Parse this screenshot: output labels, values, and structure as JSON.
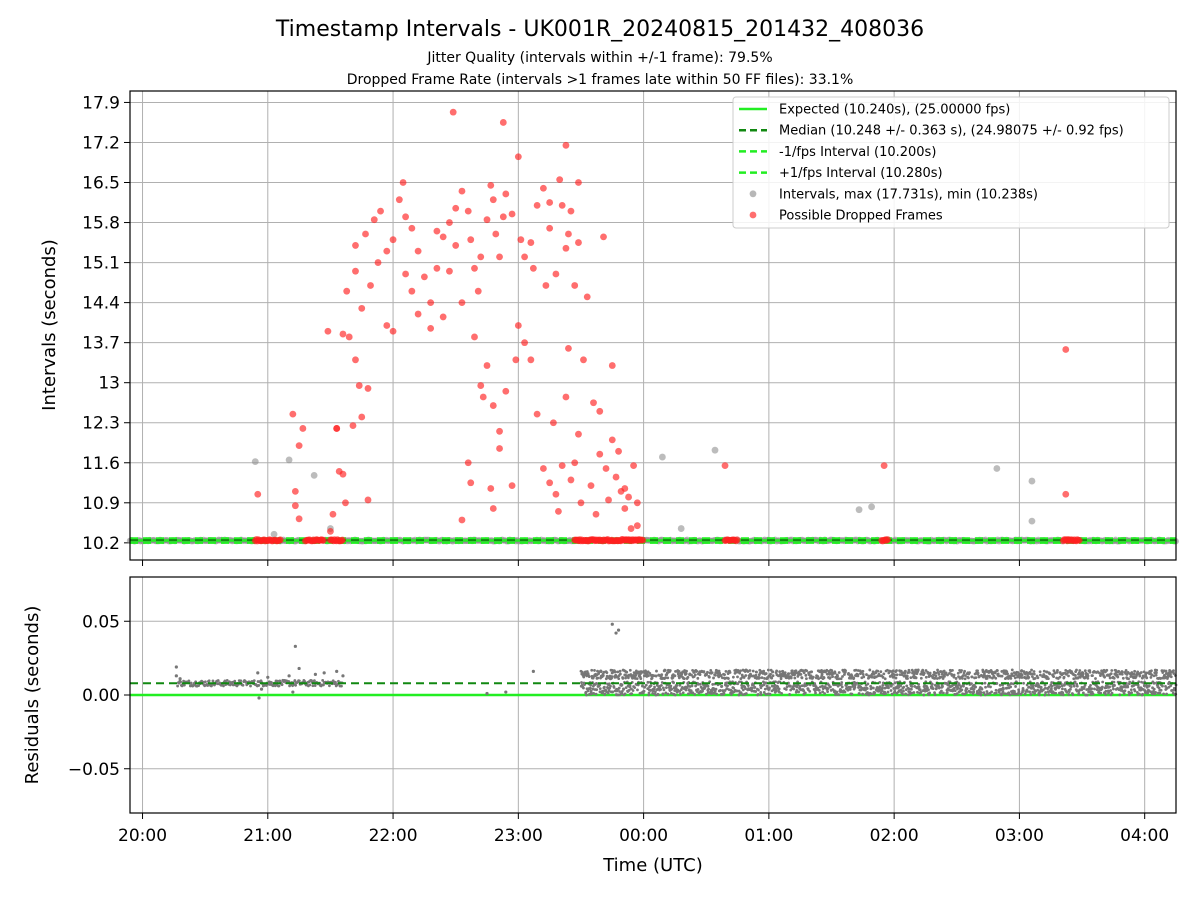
{
  "chart_data": {
    "type": "scatter",
    "title": "Timestamp Intervals - UK001R_20240815_201432_408036",
    "subtitle_lines": [
      "Jitter Quality (intervals within +/-1 frame): 79.5%",
      "Dropped Frame Rate (intervals >1 frames late within 50 FF files): 33.1%"
    ],
    "xlabel": "Time (UTC)",
    "x_ticks": [
      "20:00",
      "21:00",
      "22:00",
      "23:00",
      "00:00",
      "01:00",
      "02:00",
      "03:00",
      "04:00"
    ],
    "x_range_hours": [
      19.9,
      28.25
    ],
    "colors": {
      "expected": "#22ee22",
      "median": "#118811",
      "interval_bounds": "#22ee22",
      "intervals": "#909090",
      "dropped": "#ff2020",
      "residuals": "#777777"
    },
    "top_panel": {
      "ylabel": "Intervals (seconds)",
      "ylim": [
        9.9,
        18.1
      ],
      "y_ticks": [
        10.2,
        10.9,
        11.6,
        12.3,
        13.0,
        13.7,
        14.4,
        15.1,
        15.8,
        16.5,
        17.2,
        17.9
      ],
      "expected": 10.24,
      "median": 10.248,
      "minus_interval": 10.2,
      "plus_interval": 10.28,
      "legend": [
        {
          "key": "expected",
          "style": "solid",
          "label": "Expected (10.240s), (25.00000 fps)"
        },
        {
          "key": "median",
          "style": "dashed",
          "label": "Median (10.248 +/- 0.363 s), (24.98075 +/- 0.92 fps)"
        },
        {
          "key": "minus",
          "style": "dashed",
          "label": "-1/fps Interval (10.200s)"
        },
        {
          "key": "plus",
          "style": "dashed",
          "label": "+1/fps Interval (10.280s)"
        },
        {
          "key": "intervals",
          "style": "marker",
          "label": "Intervals, max (17.731s), min (10.238s)"
        },
        {
          "key": "dropped",
          "style": "marker",
          "label": "Possible Dropped Frames"
        }
      ],
      "gray_points": [
        [
          20.9,
          11.62
        ],
        [
          21.05,
          10.35
        ],
        [
          21.17,
          11.65
        ],
        [
          21.37,
          11.38
        ],
        [
          21.5,
          10.45
        ],
        [
          24.3,
          10.45
        ],
        [
          24.15,
          11.7
        ],
        [
          24.57,
          11.82
        ],
        [
          25.72,
          10.78
        ],
        [
          25.82,
          10.83
        ],
        [
          26.82,
          11.5
        ],
        [
          27.1,
          11.28
        ],
        [
          27.1,
          10.58
        ]
      ],
      "dropped_points": [
        [
          20.92,
          11.05
        ],
        [
          21.2,
          12.45
        ],
        [
          21.22,
          11.1
        ],
        [
          21.22,
          10.85
        ],
        [
          21.25,
          10.62
        ],
        [
          21.25,
          11.9
        ],
        [
          21.28,
          12.2
        ],
        [
          21.5,
          10.4
        ],
        [
          21.52,
          10.7
        ],
        [
          21.55,
          12.2
        ],
        [
          21.57,
          11.45
        ],
        [
          21.6,
          11.4
        ],
        [
          21.62,
          10.9
        ],
        [
          21.55,
          12.2
        ],
        [
          21.48,
          13.9
        ],
        [
          21.6,
          13.85
        ],
        [
          21.65,
          13.8
        ],
        [
          21.7,
          13.4
        ],
        [
          21.73,
          12.95
        ],
        [
          21.8,
          12.9
        ],
        [
          21.68,
          12.25
        ],
        [
          21.75,
          12.4
        ],
        [
          21.8,
          10.95
        ],
        [
          21.63,
          14.6
        ],
        [
          21.7,
          15.4
        ],
        [
          21.78,
          15.6
        ],
        [
          21.85,
          15.85
        ],
        [
          21.9,
          16.0
        ],
        [
          21.7,
          14.95
        ],
        [
          21.75,
          14.3
        ],
        [
          21.82,
          14.7
        ],
        [
          21.88,
          15.1
        ],
        [
          21.95,
          15.3
        ],
        [
          22.0,
          15.5
        ],
        [
          22.05,
          16.2
        ],
        [
          22.08,
          16.5
        ],
        [
          22.1,
          15.9
        ],
        [
          22.15,
          15.7
        ],
        [
          22.2,
          15.3
        ],
        [
          22.25,
          14.85
        ],
        [
          22.3,
          14.4
        ],
        [
          22.35,
          15.0
        ],
        [
          22.4,
          15.55
        ],
        [
          22.45,
          15.8
        ],
        [
          22.48,
          17.73
        ],
        [
          22.5,
          16.05
        ],
        [
          22.55,
          16.35
        ],
        [
          22.6,
          16.0
        ],
        [
          22.62,
          15.5
        ],
        [
          22.65,
          15.0
        ],
        [
          22.68,
          14.6
        ],
        [
          22.7,
          15.2
        ],
        [
          22.75,
          15.85
        ],
        [
          22.78,
          16.45
        ],
        [
          22.8,
          16.2
        ],
        [
          22.82,
          15.6
        ],
        [
          22.85,
          15.2
        ],
        [
          22.88,
          15.9
        ],
        [
          22.9,
          16.3
        ],
        [
          22.95,
          15.95
        ],
        [
          23.0,
          16.95
        ],
        [
          23.02,
          15.5
        ],
        [
          23.05,
          15.2
        ],
        [
          23.1,
          15.45
        ],
        [
          23.15,
          16.1
        ],
        [
          23.2,
          16.4
        ],
        [
          23.25,
          15.7
        ],
        [
          23.3,
          14.9
        ],
        [
          23.33,
          16.55
        ],
        [
          23.35,
          16.1
        ],
        [
          23.38,
          15.35
        ],
        [
          23.4,
          15.6
        ],
        [
          23.42,
          16.0
        ],
        [
          23.45,
          14.7
        ],
        [
          23.48,
          15.45
        ],
        [
          22.88,
          17.55
        ],
        [
          23.38,
          17.15
        ],
        [
          22.2,
          14.2
        ],
        [
          22.3,
          13.95
        ],
        [
          22.4,
          14.15
        ],
        [
          22.55,
          14.4
        ],
        [
          22.65,
          13.8
        ],
        [
          22.7,
          12.95
        ],
        [
          22.72,
          12.75
        ],
        [
          22.75,
          13.3
        ],
        [
          22.8,
          12.6
        ],
        [
          22.85,
          11.85
        ],
        [
          22.6,
          11.6
        ],
        [
          22.62,
          11.25
        ],
        [
          22.55,
          10.6
        ],
        [
          22.78,
          11.15
        ],
        [
          22.8,
          10.8
        ],
        [
          22.85,
          12.15
        ],
        [
          22.9,
          12.85
        ],
        [
          22.95,
          11.2
        ],
        [
          22.98,
          13.4
        ],
        [
          23.0,
          14.0
        ],
        [
          23.05,
          13.7
        ],
        [
          23.1,
          13.4
        ],
        [
          23.15,
          12.45
        ],
        [
          23.2,
          11.5
        ],
        [
          23.25,
          11.25
        ],
        [
          23.28,
          12.3
        ],
        [
          23.3,
          11.05
        ],
        [
          23.32,
          10.75
        ],
        [
          23.35,
          11.55
        ],
        [
          23.38,
          12.75
        ],
        [
          23.4,
          13.6
        ],
        [
          23.42,
          11.3
        ],
        [
          23.45,
          11.6
        ],
        [
          23.48,
          12.1
        ],
        [
          23.5,
          10.9
        ],
        [
          23.52,
          13.4
        ],
        [
          23.55,
          14.5
        ],
        [
          23.58,
          11.2
        ],
        [
          23.6,
          12.65
        ],
        [
          23.62,
          10.7
        ],
        [
          23.65,
          12.5
        ],
        [
          23.68,
          15.55
        ],
        [
          23.7,
          11.5
        ],
        [
          23.72,
          10.95
        ],
        [
          23.75,
          12.0
        ],
        [
          23.78,
          11.35
        ],
        [
          23.8,
          11.8
        ],
        [
          23.82,
          11.1
        ],
        [
          23.85,
          10.8
        ],
        [
          23.88,
          11.0
        ],
        [
          23.9,
          10.45
        ],
        [
          23.92,
          11.55
        ],
        [
          23.95,
          10.9
        ],
        [
          23.75,
          13.3
        ],
        [
          23.65,
          11.75
        ],
        [
          23.85,
          11.15
        ],
        [
          23.95,
          10.5
        ],
        [
          24.65,
          11.55
        ],
        [
          25.92,
          11.55
        ],
        [
          27.37,
          13.58
        ],
        [
          27.37,
          11.05
        ],
        [
          22.1,
          14.9
        ],
        [
          21.95,
          14.0
        ],
        [
          22.0,
          13.9
        ],
        [
          22.15,
          14.6
        ],
        [
          22.45,
          14.95
        ],
        [
          22.5,
          15.4
        ],
        [
          23.22,
          14.7
        ],
        [
          23.12,
          15.0
        ],
        [
          22.35,
          15.65
        ],
        [
          23.25,
          16.15
        ],
        [
          23.48,
          16.5
        ]
      ],
      "baseline_dropped_ranges": [
        [
          20.9,
          21.1
        ],
        [
          21.3,
          21.45
        ],
        [
          21.5,
          21.6
        ],
        [
          23.45,
          24.0
        ],
        [
          24.65,
          24.75
        ],
        [
          25.9,
          25.95
        ],
        [
          27.35,
          27.48
        ]
      ],
      "baseline_gray_ranges": [
        [
          19.9,
          20.9
        ],
        [
          21.1,
          21.3
        ],
        [
          21.45,
          21.5
        ],
        [
          21.6,
          23.45
        ],
        [
          24.0,
          24.65
        ],
        [
          24.75,
          25.9
        ],
        [
          25.95,
          27.35
        ],
        [
          27.48,
          28.25
        ]
      ]
    },
    "bottom_panel": {
      "ylabel": "Residuals (seconds)",
      "ylim": [
        -0.08,
        0.08
      ],
      "y_ticks": [
        -0.05,
        0.0,
        0.05
      ],
      "y_tick_labels": [
        "−0.05",
        "0.00",
        "0.05"
      ],
      "expected_residual": 0.0,
      "median_residual": 0.008,
      "residual_clusters": [
        {
          "x_range": [
            20.28,
            21.6
          ],
          "y_range": [
            0.006,
            0.01
          ]
        },
        {
          "x_range": [
            23.5,
            28.25
          ],
          "y_range": [
            0.0,
            0.017
          ]
        }
      ],
      "outliers": [
        [
          20.27,
          0.019
        ],
        [
          20.27,
          0.013
        ],
        [
          20.3,
          0.011
        ],
        [
          20.92,
          0.015
        ],
        [
          20.93,
          -0.002
        ],
        [
          20.95,
          0.004
        ],
        [
          21.0,
          0.012
        ],
        [
          21.17,
          0.013
        ],
        [
          21.2,
          0.002
        ],
        [
          21.22,
          0.033
        ],
        [
          21.25,
          0.018
        ],
        [
          21.38,
          0.014
        ],
        [
          21.45,
          0.015
        ],
        [
          21.55,
          0.016
        ],
        [
          21.6,
          0.013
        ],
        [
          22.75,
          0.001
        ],
        [
          22.9,
          0.002
        ],
        [
          23.12,
          0.016
        ],
        [
          23.75,
          0.048
        ],
        [
          23.78,
          0.042
        ],
        [
          23.8,
          0.044
        ]
      ]
    }
  }
}
